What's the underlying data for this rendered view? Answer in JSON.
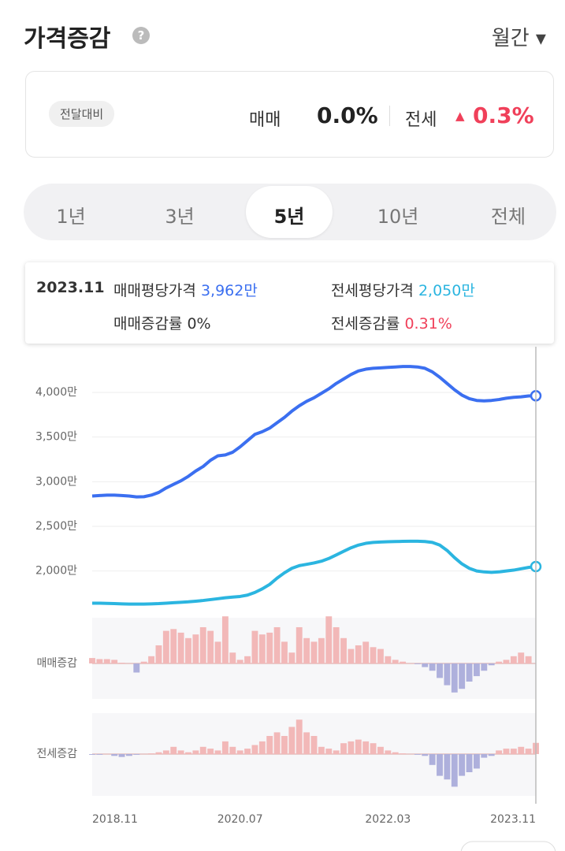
{
  "header": {
    "title": "가격증감",
    "period": "월간"
  },
  "summary": {
    "badge": "전달대비",
    "sale_label": "매매",
    "sale_value": "0.0%",
    "rent_label": "전세",
    "rent_arrow": "▲",
    "rent_value": "0.3%"
  },
  "tabs": [
    "1년",
    "3년",
    "5년",
    "10년",
    "전체"
  ],
  "tooltip": {
    "date": "2023.11",
    "sale_price_label": "매매평당가격",
    "sale_price": "3,962만",
    "rent_price_label": "전세평당가격",
    "rent_price": "2,050만",
    "sale_change_label": "매매증감률",
    "sale_change": "0%",
    "rent_change_label": "전세증감률",
    "rent_change": "0.31%"
  },
  "chart_data": [
    {
      "type": "line",
      "categories": [
        "2018.11",
        null,
        null,
        null,
        null,
        null,
        null,
        null,
        null,
        null,
        null,
        null,
        null,
        null,
        null,
        null,
        null,
        null,
        null,
        null,
        "2020.07",
        null,
        null,
        null,
        null,
        null,
        null,
        null,
        null,
        null,
        null,
        null,
        null,
        null,
        null,
        null,
        null,
        null,
        null,
        null,
        "2022.03",
        null,
        null,
        null,
        null,
        null,
        null,
        null,
        null,
        null,
        null,
        null,
        null,
        null,
        null,
        null,
        null,
        null,
        null,
        null,
        "2023.11"
      ],
      "series": [
        {
          "name": "매매",
          "color": "#3b6ff0",
          "values": [
            2840,
            2845,
            2850,
            2850,
            2845,
            2840,
            2830,
            2832,
            2850,
            2880,
            2930,
            2970,
            3010,
            3060,
            3120,
            3170,
            3240,
            3290,
            3300,
            3330,
            3390,
            3460,
            3530,
            3560,
            3600,
            3660,
            3720,
            3790,
            3850,
            3900,
            3940,
            3990,
            4040,
            4100,
            4150,
            4200,
            4240,
            4260,
            4270,
            4275,
            4280,
            4285,
            4290,
            4290,
            4285,
            4270,
            4230,
            4170,
            4100,
            4030,
            3970,
            3930,
            3910,
            3905,
            3910,
            3920,
            3935,
            3945,
            3950,
            3960,
            3962
          ]
        },
        {
          "name": "전세",
          "color": "#2bb5e0",
          "values": [
            1640,
            1640,
            1638,
            1635,
            1632,
            1630,
            1630,
            1630,
            1632,
            1635,
            1640,
            1645,
            1650,
            1655,
            1662,
            1670,
            1680,
            1690,
            1700,
            1708,
            1715,
            1730,
            1760,
            1800,
            1850,
            1920,
            1980,
            2030,
            2060,
            2075,
            2090,
            2110,
            2140,
            2180,
            2220,
            2260,
            2290,
            2310,
            2320,
            2325,
            2328,
            2330,
            2332,
            2333,
            2333,
            2330,
            2320,
            2290,
            2230,
            2150,
            2080,
            2030,
            2000,
            1990,
            1985,
            1990,
            2000,
            2010,
            2025,
            2040,
            2050
          ]
        }
      ],
      "ylim": [
        1600,
        4300
      ],
      "yticks": [
        {
          "value": 2000,
          "label": "2,000만"
        },
        {
          "value": 2500,
          "label": "2,500만"
        },
        {
          "value": 3000,
          "label": "3,000만"
        },
        {
          "value": 3500,
          "label": "3,500만"
        },
        {
          "value": 4000,
          "label": "4,000만"
        }
      ],
      "grid": true
    },
    {
      "type": "bar",
      "ylabel": "매매증감",
      "color": "#f2b8b8",
      "negative_color": "#aeb0dc",
      "values": [
        0.15,
        0.12,
        0.12,
        0.1,
        0.02,
        0,
        -0.25,
        0.05,
        0.2,
        0.5,
        0.9,
        0.95,
        0.85,
        0.7,
        0.8,
        1.0,
        0.9,
        0.6,
        1.3,
        0.3,
        0.1,
        0.2,
        0.9,
        0.8,
        0.85,
        1.0,
        0.6,
        0.3,
        1.0,
        0.7,
        0.6,
        0.7,
        1.3,
        1.0,
        0.7,
        0.4,
        0.5,
        0.6,
        0.45,
        0.4,
        0.2,
        0.1,
        0.05,
        0,
        -0.02,
        -0.1,
        -0.2,
        -0.4,
        -0.6,
        -0.8,
        -0.7,
        -0.5,
        -0.35,
        -0.2,
        -0.05,
        0.05,
        0.1,
        0.2,
        0.3,
        0.2,
        0
      ]
    },
    {
      "type": "bar",
      "ylabel": "전세증감",
      "color": "#f2b8b8",
      "negative_color": "#aeb0dc",
      "values": [
        -0.02,
        -0.02,
        0,
        -0.05,
        -0.08,
        -0.05,
        -0.02,
        0,
        0.02,
        0.05,
        0.1,
        0.2,
        0.1,
        0.05,
        0.1,
        0.2,
        0.15,
        0.1,
        0.35,
        0.2,
        0.1,
        0.15,
        0.25,
        0.35,
        0.5,
        0.6,
        0.5,
        0.75,
        0.95,
        0.6,
        0.5,
        0.2,
        0.15,
        0.1,
        0.3,
        0.35,
        0.4,
        0.35,
        0.3,
        0.2,
        0.1,
        0.05,
        0.02,
        0,
        -0.02,
        -0.05,
        -0.3,
        -0.6,
        -0.7,
        -0.9,
        -0.6,
        -0.5,
        -0.4,
        -0.1,
        -0.05,
        0.1,
        0.15,
        0.15,
        0.2,
        0.15,
        0.31
      ]
    }
  ]
}
